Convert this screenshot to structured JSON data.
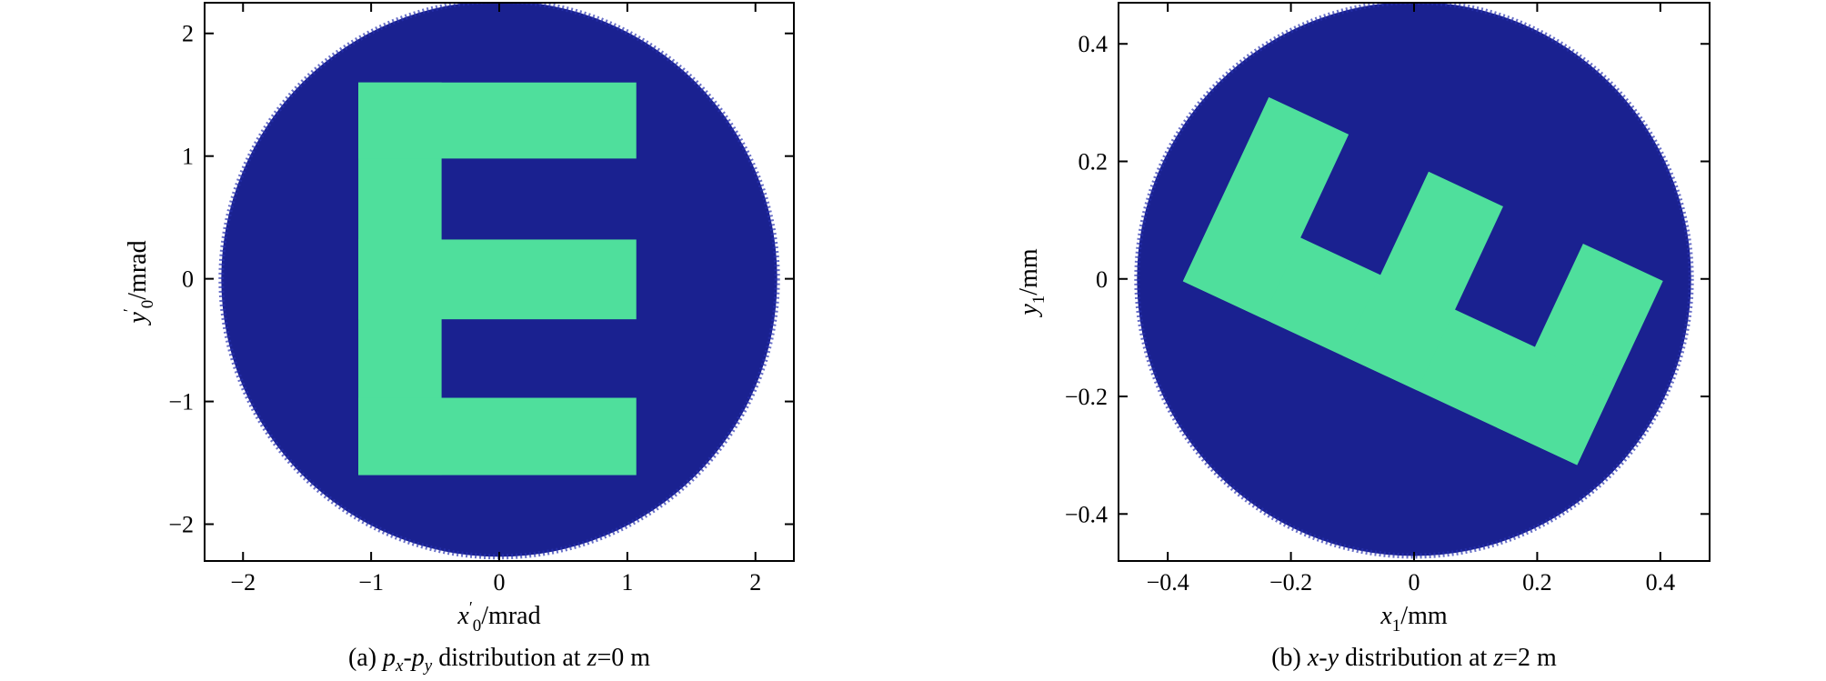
{
  "chart_data": [
    {
      "type": "scatter",
      "panel": "a",
      "caption": {
        "prefix": "(a) ",
        "v1": "p",
        "s1": "x",
        "dash": "-",
        "v2": "p",
        "s2": "y",
        "mid": " distribution at ",
        "zvar": "z",
        "rest": "=0 m"
      },
      "xlabel": {
        "var": "x",
        "prime": "′",
        "sub": "0",
        "unit": "/mrad"
      },
      "ylabel": {
        "var": "y",
        "prime": "′",
        "sub": "0",
        "unit": "/mrad"
      },
      "xlim": [
        -2.3,
        2.3
      ],
      "ylim": [
        -2.3,
        2.25
      ],
      "xticks": [
        -2,
        -1,
        0,
        1,
        2
      ],
      "yticks": [
        -2,
        -1,
        0,
        1,
        2
      ],
      "xtick_labels": [
        "−2",
        "−1",
        "0",
        "1",
        "2"
      ],
      "ytick_labels": [
        "−2",
        "−1",
        "0",
        "1",
        "2"
      ],
      "grid": false,
      "background_disk": {
        "center": [
          0,
          0
        ],
        "radius": 2.17,
        "color": "#1a2190"
      },
      "letter_E": {
        "color": "#4fdf9c",
        "rects": [
          {
            "x0": -1.1,
            "x1": -0.45,
            "y0": -1.6,
            "y1": 1.6
          },
          {
            "x0": -1.1,
            "x1": 1.07,
            "y0": 0.98,
            "y1": 1.6
          },
          {
            "x0": -1.1,
            "x1": 1.07,
            "y0": -0.33,
            "y1": 0.32
          },
          {
            "x0": -1.1,
            "x1": 1.07,
            "y0": -1.6,
            "y1": -0.97
          }
        ],
        "rotation_deg": 0
      }
    },
    {
      "type": "scatter",
      "panel": "b",
      "caption": {
        "prefix": "(b) ",
        "v1": "x",
        "dash": "-",
        "v2": "y",
        "mid": " distribution at ",
        "zvar": "z",
        "rest": "=2 m"
      },
      "xlabel": {
        "var": "x",
        "sub": "1",
        "unit": "/mm"
      },
      "ylabel": {
        "var": "y",
        "sub": "1",
        "unit": "/mm"
      },
      "xlim": [
        -0.48,
        0.48
      ],
      "ylim": [
        -0.48,
        0.47
      ],
      "xticks": [
        -0.4,
        -0.2,
        0,
        0.2,
        0.4
      ],
      "yticks": [
        -0.4,
        -0.2,
        0,
        0.2,
        0.4
      ],
      "xtick_labels": [
        "−0.4",
        "−0.2",
        "0",
        "0.2",
        "0.4"
      ],
      "ytick_labels": [
        "−0.4",
        "−0.2",
        "0",
        "0.2",
        "0.4"
      ],
      "grid": false,
      "background_disk": {
        "center": [
          0,
          0
        ],
        "radius": 0.45,
        "color": "#1a2190"
      },
      "letter_E": {
        "color": "#4fdf9c",
        "rects": [
          {
            "x0": -0.165,
            "x1": 0.165,
            "y0": -0.37,
            "y1": -0.22
          },
          {
            "x0": -0.165,
            "x1": -0.02,
            "y0": -0.37,
            "y1": 0.37
          },
          {
            "x0": -0.165,
            "x1": 0.165,
            "y0": -0.07,
            "y1": 0.07
          },
          {
            "x0": -0.165,
            "x1": 0.165,
            "y0": 0.22,
            "y1": 0.37
          }
        ],
        "rotation_deg": 65,
        "center": [
          0.01,
          0.01
        ]
      }
    }
  ]
}
